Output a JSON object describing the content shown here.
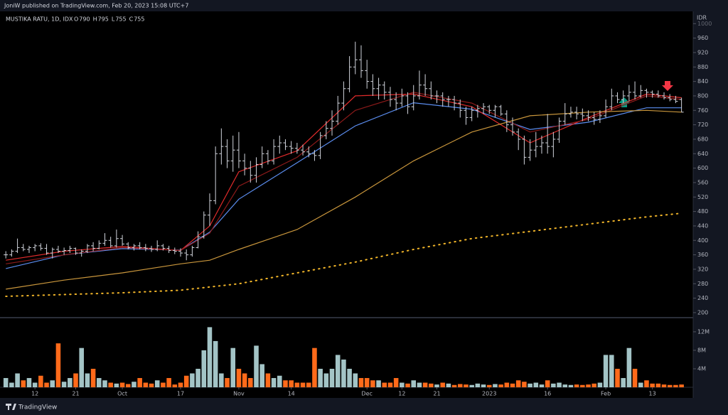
{
  "header": {
    "publisher": "JoniW published on TradingView.com, Feb 20, 2023 15:08 UTC+7"
  },
  "footer": {
    "brand": "TradingView"
  },
  "chart_data": {
    "type": "ohlc",
    "title": "MUSTIKA RATU, 1D, IDX",
    "ohlc_keys": [
      "O",
      "H",
      "L",
      "C"
    ],
    "y_label": "IDR",
    "bar_color": "#d1d4dc",
    "ylim": [
      190,
      1034
    ],
    "yticks": [
      200,
      240,
      280,
      320,
      360,
      400,
      440,
      480,
      520,
      560,
      600,
      640,
      680,
      720,
      760,
      800,
      840,
      880,
      920,
      960,
      1000
    ],
    "xlim": [
      -1,
      118
    ],
    "xticks": [
      {
        "value": 5,
        "label": "12"
      },
      {
        "value": 12,
        "label": "21"
      },
      {
        "value": 20,
        "label": "Oct"
      },
      {
        "value": 30,
        "label": "17"
      },
      {
        "value": 40,
        "label": "Nov"
      },
      {
        "value": 49,
        "label": "14"
      },
      {
        "value": 62,
        "label": "Dec"
      },
      {
        "value": 68,
        "label": "12"
      },
      {
        "value": 74,
        "label": "21"
      },
      {
        "value": 83,
        "label": "2023"
      },
      {
        "value": 93,
        "label": "16"
      },
      {
        "value": 103,
        "label": "Feb"
      },
      {
        "value": 111,
        "label": "13"
      }
    ],
    "ohlc": [
      [
        360,
        370,
        350,
        360
      ],
      [
        360,
        375,
        355,
        370
      ],
      [
        370,
        405,
        365,
        380
      ],
      [
        380,
        390,
        370,
        375
      ],
      [
        375,
        385,
        365,
        380
      ],
      [
        380,
        390,
        370,
        385
      ],
      [
        385,
        392,
        372,
        378
      ],
      [
        378,
        390,
        360,
        365
      ],
      [
        365,
        380,
        350,
        375
      ],
      [
        375,
        385,
        365,
        370
      ],
      [
        370,
        380,
        360,
        372
      ],
      [
        372,
        385,
        365,
        378
      ],
      [
        378,
        380,
        360,
        365
      ],
      [
        365,
        375,
        355,
        370
      ],
      [
        370,
        390,
        365,
        385
      ],
      [
        385,
        395,
        370,
        378
      ],
      [
        378,
        400,
        375,
        392
      ],
      [
        392,
        420,
        385,
        400
      ],
      [
        400,
        410,
        380,
        385
      ],
      [
        385,
        430,
        380,
        405
      ],
      [
        405,
        415,
        385,
        390
      ],
      [
        390,
        395,
        375,
        380
      ],
      [
        380,
        390,
        372,
        385
      ],
      [
        385,
        395,
        375,
        380
      ],
      [
        380,
        390,
        370,
        378
      ],
      [
        378,
        385,
        368,
        375
      ],
      [
        375,
        400,
        370,
        385
      ],
      [
        385,
        390,
        372,
        378
      ],
      [
        378,
        385,
        365,
        372
      ],
      [
        372,
        380,
        362,
        370
      ],
      [
        370,
        378,
        355,
        365
      ],
      [
        365,
        375,
        345,
        360
      ],
      [
        360,
        385,
        355,
        380
      ],
      [
        380,
        425,
        378,
        410
      ],
      [
        410,
        480,
        405,
        470
      ],
      [
        470,
        530,
        440,
        510
      ],
      [
        510,
        660,
        500,
        640
      ],
      [
        640,
        710,
        610,
        660
      ],
      [
        660,
        680,
        600,
        620
      ],
      [
        620,
        690,
        590,
        650
      ],
      [
        650,
        700,
        600,
        620
      ],
      [
        620,
        640,
        580,
        600
      ],
      [
        600,
        620,
        560,
        580
      ],
      [
        580,
        630,
        560,
        610
      ],
      [
        610,
        660,
        600,
        640
      ],
      [
        640,
        650,
        610,
        620
      ],
      [
        620,
        680,
        610,
        660
      ],
      [
        660,
        690,
        640,
        670
      ],
      [
        670,
        680,
        650,
        660
      ],
      [
        660,
        675,
        640,
        655
      ],
      [
        655,
        670,
        640,
        650
      ],
      [
        650,
        665,
        635,
        645
      ],
      [
        645,
        660,
        630,
        640
      ],
      [
        640,
        650,
        620,
        635
      ],
      [
        635,
        700,
        625,
        690
      ],
      [
        690,
        730,
        680,
        710
      ],
      [
        710,
        760,
        690,
        730
      ],
      [
        730,
        800,
        720,
        780
      ],
      [
        780,
        840,
        760,
        820
      ],
      [
        820,
        910,
        810,
        880
      ],
      [
        880,
        950,
        860,
        900
      ],
      [
        900,
        940,
        850,
        870
      ],
      [
        870,
        900,
        820,
        840
      ],
      [
        840,
        860,
        800,
        820
      ],
      [
        820,
        850,
        790,
        830
      ],
      [
        830,
        840,
        790,
        810
      ],
      [
        810,
        825,
        770,
        790
      ],
      [
        790,
        810,
        760,
        780
      ],
      [
        780,
        820,
        770,
        800
      ],
      [
        800,
        810,
        750,
        770
      ],
      [
        770,
        830,
        760,
        800
      ],
      [
        800,
        870,
        790,
        830
      ],
      [
        830,
        860,
        800,
        820
      ],
      [
        820,
        840,
        790,
        800
      ],
      [
        800,
        815,
        780,
        800
      ],
      [
        800,
        810,
        770,
        790
      ],
      [
        790,
        800,
        770,
        790
      ],
      [
        790,
        800,
        760,
        780
      ],
      [
        780,
        790,
        740,
        760
      ],
      [
        760,
        770,
        720,
        740
      ],
      [
        740,
        770,
        730,
        760
      ],
      [
        760,
        775,
        740,
        765
      ],
      [
        765,
        780,
        750,
        770
      ],
      [
        770,
        775,
        750,
        760
      ],
      [
        760,
        775,
        740,
        770
      ],
      [
        770,
        775,
        745,
        750
      ],
      [
        750,
        760,
        700,
        720
      ],
      [
        720,
        740,
        690,
        700
      ],
      [
        700,
        710,
        650,
        680
      ],
      [
        680,
        690,
        610,
        630
      ],
      [
        630,
        680,
        620,
        650
      ],
      [
        650,
        700,
        630,
        660
      ],
      [
        660,
        690,
        640,
        670
      ],
      [
        670,
        750,
        640,
        660
      ],
      [
        660,
        700,
        630,
        680
      ],
      [
        680,
        740,
        670,
        730
      ],
      [
        730,
        780,
        720,
        750
      ],
      [
        750,
        770,
        740,
        755
      ],
      [
        755,
        770,
        735,
        750
      ],
      [
        750,
        765,
        730,
        745
      ],
      [
        745,
        760,
        730,
        740
      ],
      [
        740,
        755,
        720,
        735
      ],
      [
        735,
        760,
        725,
        745
      ],
      [
        745,
        790,
        740,
        770
      ],
      [
        770,
        820,
        760,
        800
      ],
      [
        800,
        810,
        780,
        790
      ],
      [
        790,
        815,
        780,
        800
      ],
      [
        800,
        830,
        785,
        810
      ],
      [
        810,
        840,
        790,
        800
      ],
      [
        800,
        830,
        795,
        815
      ],
      [
        815,
        820,
        795,
        810
      ],
      [
        810,
        815,
        795,
        805
      ],
      [
        805,
        815,
        795,
        800
      ],
      [
        800,
        810,
        790,
        795
      ],
      [
        795,
        805,
        785,
        790
      ],
      [
        790,
        800,
        780,
        785
      ],
      [
        790,
        795,
        755,
        755
      ]
    ],
    "lines": [
      {
        "color": "#5b8def",
        "style": "solid",
        "x": [
          0,
          10,
          20,
          30,
          35,
          40,
          50,
          60,
          70,
          80,
          90,
          100,
          110,
          116
        ],
        "values": [
          322,
          360,
          377,
          373,
          423,
          514,
          615,
          717,
          781,
          763,
          707,
          727,
          767,
          767
        ]
      },
      {
        "color": "#e02b2b",
        "style": "solid",
        "x": [
          0,
          10,
          20,
          30,
          35,
          40,
          50,
          60,
          70,
          80,
          90,
          100,
          110,
          116
        ],
        "values": [
          345,
          370,
          383,
          372,
          440,
          590,
          648,
          800,
          805,
          770,
          670,
          740,
          805,
          795
        ]
      },
      {
        "color": "#8b1a1a",
        "style": "solid",
        "x": [
          0,
          10,
          20,
          30,
          35,
          40,
          50,
          60,
          70,
          80,
          90,
          100,
          110,
          116
        ],
        "values": [
          335,
          360,
          380,
          372,
          420,
          550,
          630,
          760,
          810,
          780,
          700,
          735,
          800,
          790
        ]
      },
      {
        "color": "#c9963c",
        "style": "solid",
        "x": [
          0,
          10,
          20,
          30,
          35,
          40,
          50,
          60,
          70,
          80,
          90,
          100,
          110,
          116
        ],
        "values": [
          265,
          290,
          310,
          335,
          345,
          375,
          430,
          520,
          620,
          700,
          745,
          755,
          760,
          755
        ]
      },
      {
        "color": "#f0b429",
        "style": "dotted",
        "x": [
          0,
          10,
          20,
          30,
          40,
          50,
          60,
          70,
          80,
          90,
          100,
          110,
          116
        ],
        "values": [
          245,
          250,
          255,
          262,
          280,
          310,
          340,
          375,
          405,
          425,
          445,
          465,
          475
        ]
      }
    ],
    "volume": {
      "up_color": "#a3c4c6",
      "down_color": "#ff6a1a",
      "ylim": [
        0,
        14.6
      ],
      "yticks": [
        {
          "value": 4,
          "label": "4M"
        },
        {
          "value": 8,
          "label": "8M"
        },
        {
          "value": 12,
          "label": "12M"
        }
      ],
      "values": [
        2,
        1,
        3,
        1.5,
        2,
        1,
        2.5,
        1,
        1.5,
        9.5,
        1.2,
        2,
        3,
        8.5,
        3,
        4,
        2,
        1.5,
        1,
        0.8,
        1,
        0.7,
        1.2,
        2,
        1,
        0.8,
        1.5,
        1,
        2,
        0.6,
        1,
        2.5,
        3,
        4,
        8,
        13,
        10,
        3,
        2,
        8.5,
        4,
        3,
        2,
        9,
        5,
        3,
        2,
        2.5,
        1.5,
        1.5,
        1,
        1,
        1,
        8.5,
        4,
        3,
        4,
        7,
        6,
        4,
        3,
        2,
        2,
        1.5,
        1.5,
        1,
        1,
        2,
        1,
        0.8,
        1.5,
        1,
        1,
        0.8,
        0.6,
        1,
        0.8,
        0.5,
        0.7,
        0.6,
        0.5,
        0.8,
        0.6,
        0.5,
        0.7,
        0.6,
        1,
        0.8,
        1.5,
        1.2,
        0.8,
        1,
        0.6,
        1.5,
        0.8,
        1,
        0.6,
        0.5,
        0.6,
        0.5,
        0.6,
        0.8,
        1,
        7,
        7,
        4,
        2,
        8.5,
        4,
        1,
        1.5,
        0.8,
        0.8,
        0.6,
        0.5,
        0.5,
        0.6
      ]
    }
  }
}
